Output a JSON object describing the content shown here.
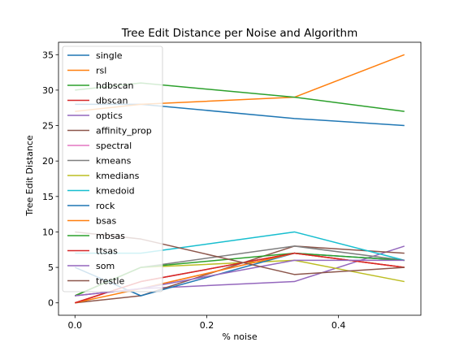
{
  "chart_data": {
    "type": "line",
    "title": "Tree Edit Distance per Noise and Algorithm",
    "xlabel": "% noise",
    "ylabel": "Tree Edit Distance",
    "xlim": [
      -0.025,
      0.525
    ],
    "ylim": [
      -1.75,
      36.75
    ],
    "xticks": [
      0.0,
      0.2,
      0.4
    ],
    "xtick_labels": [
      "0.0",
      "0.2",
      "0.4"
    ],
    "yticks": [
      0,
      5,
      10,
      15,
      20,
      25,
      30,
      35
    ],
    "ytick_labels": [
      "0",
      "5",
      "10",
      "15",
      "20",
      "25",
      "30",
      "35"
    ],
    "grid": false,
    "legend_position": "upper-left",
    "x": [
      0.0,
      0.1,
      0.333,
      0.5
    ],
    "series": [
      {
        "name": "single",
        "color": "#1f77b4",
        "values": [
          28,
          28,
          26,
          25
        ]
      },
      {
        "name": "rsl",
        "color": "#ff7f0e",
        "values": [
          27,
          28,
          29,
          35
        ]
      },
      {
        "name": "hdbscan",
        "color": "#2ca02c",
        "values": [
          30,
          31,
          29,
          27
        ]
      },
      {
        "name": "dbscan",
        "color": "#d62728",
        "values": [
          0,
          3,
          7,
          5
        ]
      },
      {
        "name": "optics",
        "color": "#9467bd",
        "values": [
          1,
          2,
          3,
          8
        ]
      },
      {
        "name": "affinity_prop",
        "color": "#8c564b",
        "values": [
          0,
          1,
          8,
          7
        ]
      },
      {
        "name": "spectral",
        "color": "#e377c2",
        "values": [
          1,
          2,
          7,
          5
        ]
      },
      {
        "name": "kmeans",
        "color": "#7f7f7f",
        "values": [
          1,
          5,
          8,
          6
        ]
      },
      {
        "name": "kmedians",
        "color": "#bcbd22",
        "values": [
          1,
          5,
          6,
          3
        ]
      },
      {
        "name": "kmedoid",
        "color": "#17becf",
        "values": [
          7,
          7,
          10,
          6
        ]
      },
      {
        "name": "rock",
        "color": "#1f77b4",
        "values": [
          5,
          1,
          7,
          6
        ]
      },
      {
        "name": "bsas",
        "color": "#ff7f0e",
        "values": [
          0,
          2,
          7,
          5
        ]
      },
      {
        "name": "mbsas",
        "color": "#2ca02c",
        "values": [
          1,
          5,
          7,
          6
        ]
      },
      {
        "name": "ttsas",
        "color": "#d62728",
        "values": [
          0,
          3,
          7,
          5
        ]
      },
      {
        "name": "som",
        "color": "#9467bd",
        "values": [
          1,
          2,
          6,
          6
        ]
      },
      {
        "name": "trestle",
        "color": "#8c564b",
        "values": [
          10,
          9,
          4,
          5
        ]
      }
    ]
  }
}
